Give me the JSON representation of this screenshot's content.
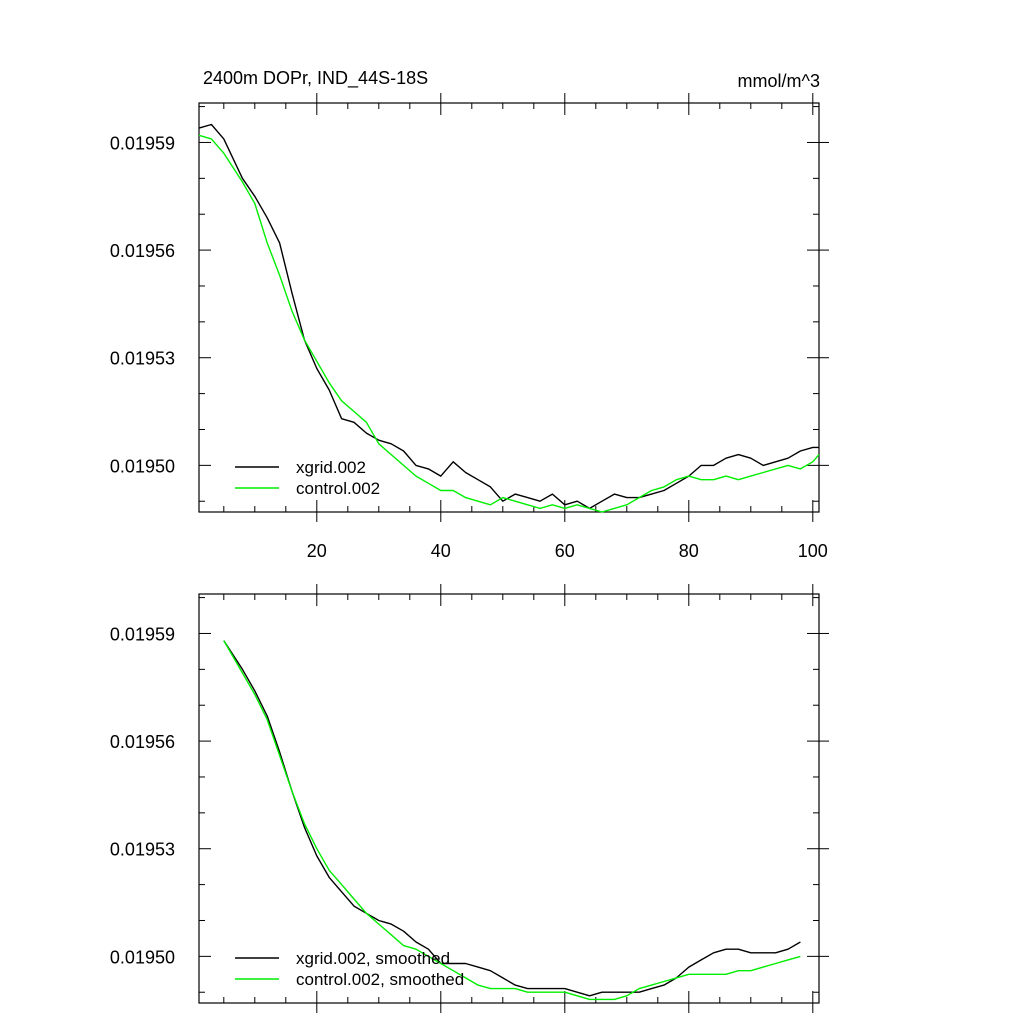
{
  "chart_data": [
    {
      "type": "line",
      "title": "2400m DOPr, IND_44S-18S",
      "units": "mmol/m^3",
      "xlim": [
        1,
        101
      ],
      "ylim": [
        0.019487,
        0.019601
      ],
      "x_ticks": [
        20,
        40,
        60,
        80,
        100
      ],
      "x_tick_labels": [
        "20",
        "40",
        "60",
        "80",
        "100"
      ],
      "y_ticks": [
        0.01959,
        0.01956,
        0.01953,
        0.0195
      ],
      "y_tick_labels": [
        "0.01959",
        "0.01956",
        "0.01953",
        "0.01950"
      ],
      "legend_position": "bottom-left",
      "series": [
        {
          "name": "xgrid.002",
          "color": "#000000",
          "x": [
            1,
            3,
            5,
            8,
            10,
            12,
            14,
            16,
            18,
            20,
            22,
            24,
            26,
            28,
            30,
            32,
            34,
            36,
            38,
            40,
            42,
            44,
            46,
            48,
            50,
            52,
            54,
            56,
            58,
            60,
            62,
            64,
            66,
            68,
            70,
            72,
            74,
            76,
            78,
            80,
            82,
            84,
            86,
            88,
            90,
            92,
            94,
            96,
            98,
            100,
            101
          ],
          "values": [
            0.019594,
            0.019595,
            0.019591,
            0.01958,
            0.019575,
            0.019569,
            0.019562,
            0.019548,
            0.019535,
            0.019527,
            0.019521,
            0.019513,
            0.019512,
            0.019509,
            0.019507,
            0.019506,
            0.019504,
            0.0195,
            0.019499,
            0.019497,
            0.019501,
            0.019498,
            0.019496,
            0.019494,
            0.01949,
            0.019492,
            0.019491,
            0.01949,
            0.019492,
            0.019489,
            0.01949,
            0.019488,
            0.01949,
            0.019492,
            0.019491,
            0.019491,
            0.019492,
            0.019493,
            0.019495,
            0.019497,
            0.0195,
            0.0195,
            0.019502,
            0.019503,
            0.019502,
            0.0195,
            0.019501,
            0.019502,
            0.019504,
            0.019505,
            0.019505
          ]
        },
        {
          "name": "control.002",
          "color": "#00ee00",
          "x": [
            1,
            3,
            5,
            8,
            10,
            12,
            14,
            16,
            18,
            20,
            22,
            24,
            26,
            28,
            30,
            32,
            34,
            36,
            38,
            40,
            42,
            44,
            46,
            48,
            50,
            52,
            54,
            56,
            58,
            60,
            62,
            64,
            66,
            68,
            70,
            72,
            74,
            76,
            78,
            80,
            82,
            84,
            86,
            88,
            90,
            92,
            94,
            96,
            98,
            100,
            101
          ],
          "values": [
            0.019592,
            0.019591,
            0.019587,
            0.019579,
            0.019573,
            0.019562,
            0.019553,
            0.019543,
            0.019535,
            0.019529,
            0.019523,
            0.019518,
            0.019515,
            0.019512,
            0.019506,
            0.019503,
            0.0195,
            0.019497,
            0.019495,
            0.019493,
            0.019493,
            0.019491,
            0.01949,
            0.019489,
            0.019491,
            0.01949,
            0.019489,
            0.019488,
            0.019489,
            0.019488,
            0.019489,
            0.019488,
            0.019487,
            0.019488,
            0.019489,
            0.019491,
            0.019493,
            0.019494,
            0.019496,
            0.019497,
            0.019496,
            0.019496,
            0.019497,
            0.019496,
            0.019497,
            0.019498,
            0.019499,
            0.0195,
            0.019499,
            0.019501,
            0.019503
          ]
        }
      ]
    },
    {
      "type": "line",
      "xlim": [
        1,
        101
      ],
      "ylim": [
        0.019487,
        0.019601
      ],
      "x_ticks": [
        20,
        40,
        60,
        80,
        100
      ],
      "y_ticks": [
        0.01959,
        0.01956,
        0.01953,
        0.0195
      ],
      "y_tick_labels": [
        "0.01959",
        "0.01956",
        "0.01953",
        "0.01950"
      ],
      "legend_position": "bottom-left",
      "series": [
        {
          "name": "xgrid.002, smoothed",
          "color": "#000000",
          "x": [
            5,
            8,
            10,
            12,
            14,
            16,
            18,
            20,
            22,
            24,
            26,
            28,
            30,
            32,
            34,
            36,
            38,
            40,
            42,
            44,
            46,
            48,
            50,
            52,
            54,
            56,
            58,
            60,
            62,
            64,
            66,
            68,
            70,
            72,
            74,
            76,
            78,
            80,
            82,
            84,
            86,
            88,
            90,
            92,
            94,
            96,
            98
          ],
          "values": [
            0.019588,
            0.01958,
            0.019574,
            0.019567,
            0.019557,
            0.019546,
            0.019536,
            0.019528,
            0.019522,
            0.019518,
            0.019514,
            0.019512,
            0.01951,
            0.019509,
            0.019507,
            0.019504,
            0.019502,
            0.019498,
            0.019498,
            0.019498,
            0.019497,
            0.019496,
            0.019494,
            0.019492,
            0.019491,
            0.019491,
            0.019491,
            0.019491,
            0.01949,
            0.019489,
            0.01949,
            0.01949,
            0.01949,
            0.01949,
            0.019491,
            0.019492,
            0.019494,
            0.019497,
            0.019499,
            0.019501,
            0.019502,
            0.019502,
            0.019501,
            0.019501,
            0.019501,
            0.019502,
            0.019504
          ]
        },
        {
          "name": "control.002, smoothed",
          "color": "#00ee00",
          "x": [
            5,
            8,
            10,
            12,
            14,
            16,
            18,
            20,
            22,
            24,
            26,
            28,
            30,
            32,
            34,
            36,
            38,
            40,
            42,
            44,
            46,
            48,
            50,
            52,
            54,
            56,
            58,
            60,
            62,
            64,
            66,
            68,
            70,
            72,
            74,
            76,
            78,
            80,
            82,
            84,
            86,
            88,
            90,
            92,
            94,
            96,
            98
          ],
          "values": [
            0.019588,
            0.019579,
            0.019573,
            0.019566,
            0.019556,
            0.019546,
            0.019537,
            0.01953,
            0.019524,
            0.01952,
            0.019516,
            0.019512,
            0.019509,
            0.019506,
            0.019503,
            0.019502,
            0.0195,
            0.019498,
            0.019496,
            0.019494,
            0.019492,
            0.019491,
            0.019491,
            0.019491,
            0.01949,
            0.01949,
            0.01949,
            0.01949,
            0.019489,
            0.019488,
            0.019488,
            0.019488,
            0.019489,
            0.019491,
            0.019492,
            0.019493,
            0.019494,
            0.019495,
            0.019495,
            0.019495,
            0.019495,
            0.019496,
            0.019496,
            0.019497,
            0.019498,
            0.019499,
            0.0195
          ]
        }
      ]
    }
  ]
}
